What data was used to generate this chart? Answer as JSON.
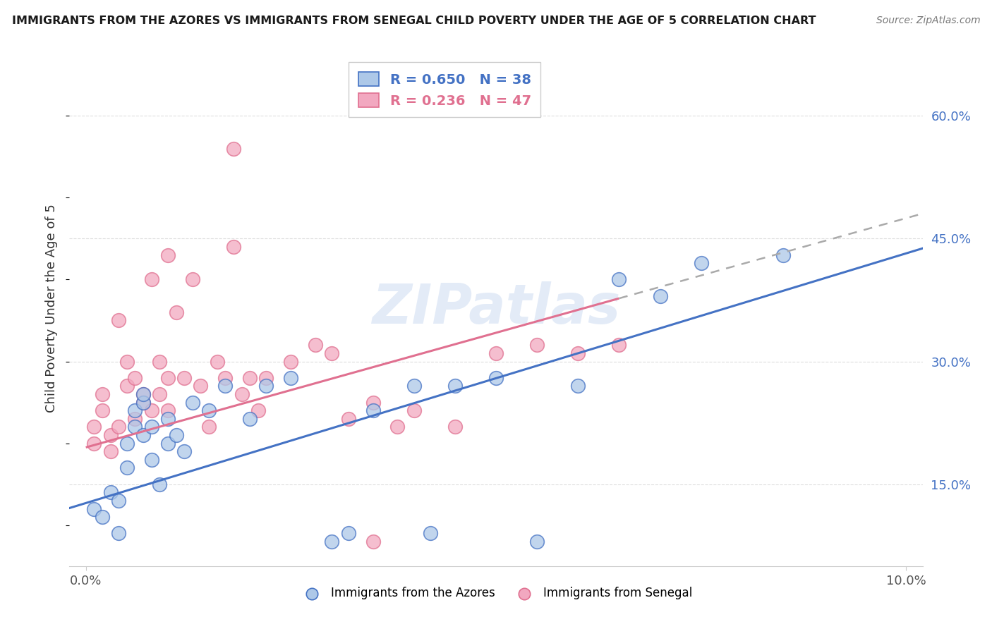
{
  "title": "IMMIGRANTS FROM THE AZORES VS IMMIGRANTS FROM SENEGAL CHILD POVERTY UNDER THE AGE OF 5 CORRELATION CHART",
  "source": "Source: ZipAtlas.com",
  "ylabel": "Child Poverty Under the Age of 5",
  "y_tick_labels": [
    "15.0%",
    "30.0%",
    "45.0%",
    "60.0%"
  ],
  "y_tick_values": [
    0.15,
    0.3,
    0.45,
    0.6
  ],
  "xlim": [
    0.0,
    0.1
  ],
  "ylim": [
    0.05,
    0.68
  ],
  "legend_azores_R": "0.650",
  "legend_azores_N": "38",
  "legend_senegal_R": "0.236",
  "legend_senegal_N": "47",
  "color_azores": "#adc8e8",
  "color_senegal": "#f2a8c0",
  "line_color_azores": "#4472c4",
  "line_color_senegal": "#e07090",
  "watermark": "ZIPatlas",
  "watermark_color": "#c8d8f0",
  "az_intercept": 0.127,
  "az_slope": 3.05,
  "sen_intercept": 0.195,
  "sen_slope": 2.8,
  "az_x": [
    0.001,
    0.002,
    0.003,
    0.004,
    0.004,
    0.005,
    0.005,
    0.006,
    0.006,
    0.007,
    0.007,
    0.007,
    0.008,
    0.008,
    0.009,
    0.01,
    0.01,
    0.011,
    0.012,
    0.013,
    0.015,
    0.017,
    0.02,
    0.022,
    0.025,
    0.03,
    0.032,
    0.035,
    0.04,
    0.042,
    0.045,
    0.05,
    0.055,
    0.06,
    0.065,
    0.07,
    0.075,
    0.085
  ],
  "az_y": [
    0.12,
    0.11,
    0.14,
    0.09,
    0.13,
    0.17,
    0.2,
    0.24,
    0.22,
    0.25,
    0.21,
    0.26,
    0.18,
    0.22,
    0.15,
    0.2,
    0.23,
    0.21,
    0.19,
    0.25,
    0.24,
    0.27,
    0.23,
    0.27,
    0.28,
    0.08,
    0.09,
    0.24,
    0.27,
    0.09,
    0.27,
    0.28,
    0.08,
    0.27,
    0.4,
    0.38,
    0.42,
    0.43
  ],
  "sen_x": [
    0.001,
    0.001,
    0.002,
    0.002,
    0.003,
    0.003,
    0.004,
    0.004,
    0.005,
    0.005,
    0.006,
    0.006,
    0.007,
    0.007,
    0.008,
    0.008,
    0.009,
    0.009,
    0.01,
    0.01,
    0.011,
    0.012,
    0.013,
    0.014,
    0.015,
    0.016,
    0.017,
    0.018,
    0.019,
    0.02,
    0.021,
    0.022,
    0.025,
    0.028,
    0.03,
    0.032,
    0.035,
    0.038,
    0.04,
    0.045,
    0.05,
    0.055,
    0.06,
    0.065,
    0.01,
    0.018,
    0.035
  ],
  "sen_y": [
    0.2,
    0.22,
    0.24,
    0.26,
    0.19,
    0.21,
    0.35,
    0.22,
    0.3,
    0.27,
    0.28,
    0.23,
    0.26,
    0.25,
    0.4,
    0.24,
    0.3,
    0.26,
    0.28,
    0.24,
    0.36,
    0.28,
    0.4,
    0.27,
    0.22,
    0.3,
    0.28,
    0.44,
    0.26,
    0.28,
    0.24,
    0.28,
    0.3,
    0.32,
    0.31,
    0.23,
    0.25,
    0.22,
    0.24,
    0.22,
    0.31,
    0.32,
    0.31,
    0.32,
    0.43,
    0.56,
    0.08
  ]
}
